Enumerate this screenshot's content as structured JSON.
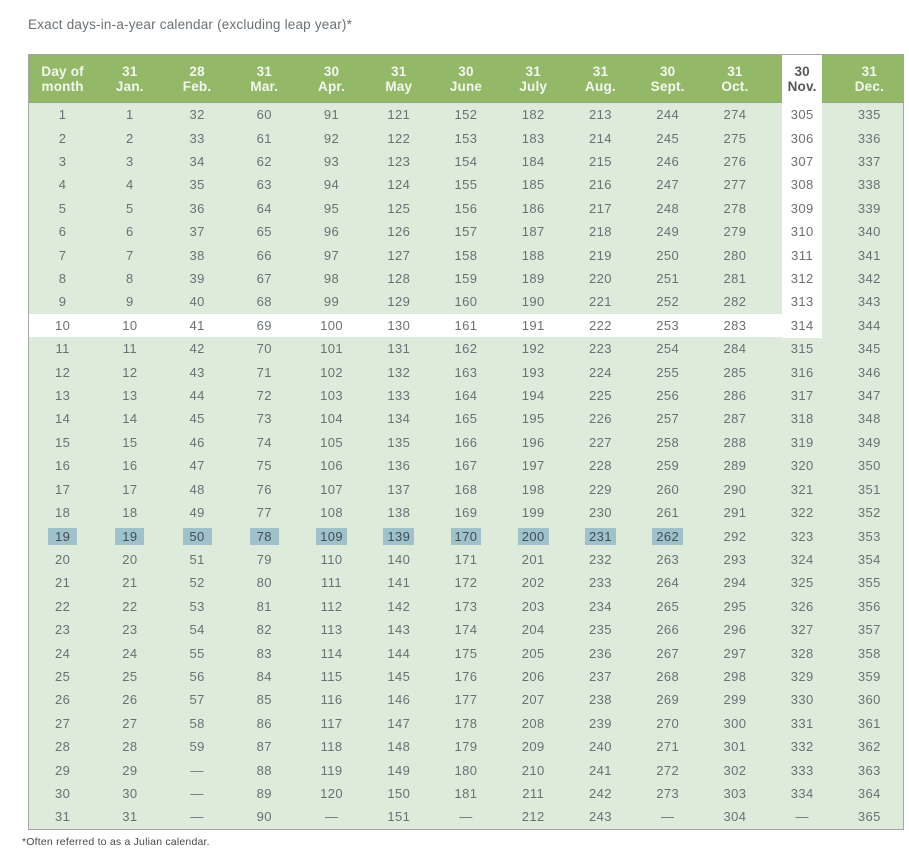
{
  "title": "Exact days-in-a-year calendar (excluding leap year)*",
  "footnote": "*Often referred to as a Julian calendar.",
  "table": {
    "corner_header": {
      "line1": "Day of",
      "line2": "month"
    },
    "columns": [
      {
        "days": "31",
        "month": "Jan."
      },
      {
        "days": "28",
        "month": "Feb."
      },
      {
        "days": "31",
        "month": "Mar."
      },
      {
        "days": "30",
        "month": "Apr."
      },
      {
        "days": "31",
        "month": "May"
      },
      {
        "days": "30",
        "month": "June"
      },
      {
        "days": "31",
        "month": "July"
      },
      {
        "days": "31",
        "month": "Aug."
      },
      {
        "days": "30",
        "month": "Sept."
      },
      {
        "days": "31",
        "month": "Oct."
      },
      {
        "days": "30",
        "month": "Nov."
      },
      {
        "days": "31",
        "month": "Dec."
      }
    ],
    "rows": [
      [
        "1",
        "1",
        "32",
        "60",
        "91",
        "121",
        "152",
        "182",
        "213",
        "244",
        "274",
        "305",
        "335"
      ],
      [
        "2",
        "2",
        "33",
        "61",
        "92",
        "122",
        "153",
        "183",
        "214",
        "245",
        "275",
        "306",
        "336"
      ],
      [
        "3",
        "3",
        "34",
        "62",
        "93",
        "123",
        "154",
        "184",
        "215",
        "246",
        "276",
        "307",
        "337"
      ],
      [
        "4",
        "4",
        "35",
        "63",
        "94",
        "124",
        "155",
        "185",
        "216",
        "247",
        "277",
        "308",
        "338"
      ],
      [
        "5",
        "5",
        "36",
        "64",
        "95",
        "125",
        "156",
        "186",
        "217",
        "248",
        "278",
        "309",
        "339"
      ],
      [
        "6",
        "6",
        "37",
        "65",
        "96",
        "126",
        "157",
        "187",
        "218",
        "249",
        "279",
        "310",
        "340"
      ],
      [
        "7",
        "7",
        "38",
        "66",
        "97",
        "127",
        "158",
        "188",
        "219",
        "250",
        "280",
        "311",
        "341"
      ],
      [
        "8",
        "8",
        "39",
        "67",
        "98",
        "128",
        "159",
        "189",
        "220",
        "251",
        "281",
        "312",
        "342"
      ],
      [
        "9",
        "9",
        "40",
        "68",
        "99",
        "129",
        "160",
        "190",
        "221",
        "252",
        "282",
        "313",
        "343"
      ],
      [
        "10",
        "10",
        "41",
        "69",
        "100",
        "130",
        "161",
        "191",
        "222",
        "253",
        "283",
        "314",
        "344"
      ],
      [
        "11",
        "11",
        "42",
        "70",
        "101",
        "131",
        "162",
        "192",
        "223",
        "254",
        "284",
        "315",
        "345"
      ],
      [
        "12",
        "12",
        "43",
        "71",
        "102",
        "132",
        "163",
        "193",
        "224",
        "255",
        "285",
        "316",
        "346"
      ],
      [
        "13",
        "13",
        "44",
        "72",
        "103",
        "133",
        "164",
        "194",
        "225",
        "256",
        "286",
        "317",
        "347"
      ],
      [
        "14",
        "14",
        "45",
        "73",
        "104",
        "134",
        "165",
        "195",
        "226",
        "257",
        "287",
        "318",
        "348"
      ],
      [
        "15",
        "15",
        "46",
        "74",
        "105",
        "135",
        "166",
        "196",
        "227",
        "258",
        "288",
        "319",
        "349"
      ],
      [
        "16",
        "16",
        "47",
        "75",
        "106",
        "136",
        "167",
        "197",
        "228",
        "259",
        "289",
        "320",
        "350"
      ],
      [
        "17",
        "17",
        "48",
        "76",
        "107",
        "137",
        "168",
        "198",
        "229",
        "260",
        "290",
        "321",
        "351"
      ],
      [
        "18",
        "18",
        "49",
        "77",
        "108",
        "138",
        "169",
        "199",
        "230",
        "261",
        "291",
        "322",
        "352"
      ],
      [
        "19",
        "19",
        "50",
        "78",
        "109",
        "139",
        "170",
        "200",
        "231",
        "262",
        "292",
        "323",
        "353"
      ],
      [
        "20",
        "20",
        "51",
        "79",
        "110",
        "140",
        "171",
        "201",
        "232",
        "263",
        "293",
        "324",
        "354"
      ],
      [
        "21",
        "21",
        "52",
        "80",
        "111",
        "141",
        "172",
        "202",
        "233",
        "264",
        "294",
        "325",
        "355"
      ],
      [
        "22",
        "22",
        "53",
        "81",
        "112",
        "142",
        "173",
        "203",
        "234",
        "265",
        "295",
        "326",
        "356"
      ],
      [
        "23",
        "23",
        "54",
        "82",
        "113",
        "143",
        "174",
        "204",
        "235",
        "266",
        "296",
        "327",
        "357"
      ],
      [
        "24",
        "24",
        "55",
        "83",
        "114",
        "144",
        "175",
        "205",
        "236",
        "267",
        "297",
        "328",
        "358"
      ],
      [
        "25",
        "25",
        "56",
        "84",
        "115",
        "145",
        "176",
        "206",
        "237",
        "268",
        "298",
        "329",
        "359"
      ],
      [
        "26",
        "26",
        "57",
        "85",
        "116",
        "146",
        "177",
        "207",
        "238",
        "269",
        "299",
        "330",
        "360"
      ],
      [
        "27",
        "27",
        "58",
        "86",
        "117",
        "147",
        "178",
        "208",
        "239",
        "270",
        "300",
        "331",
        "361"
      ],
      [
        "28",
        "28",
        "59",
        "87",
        "118",
        "148",
        "179",
        "209",
        "240",
        "271",
        "301",
        "332",
        "362"
      ],
      [
        "29",
        "29",
        "—",
        "88",
        "119",
        "149",
        "180",
        "210",
        "241",
        "272",
        "302",
        "333",
        "363"
      ],
      [
        "30",
        "30",
        "—",
        "89",
        "120",
        "150",
        "181",
        "211",
        "242",
        "273",
        "303",
        "334",
        "364"
      ],
      [
        "31",
        "31",
        "—",
        "90",
        "—",
        "151",
        "—",
        "212",
        "243",
        "—",
        "304",
        "—",
        "365"
      ]
    ]
  },
  "highlights": {
    "white_row_day": "10",
    "white_column_month": "Nov.",
    "teal_row_day": "19",
    "teal_last_column_month": "Sept.",
    "teal_col_end_index": 9
  },
  "colors": {
    "header_bg": "#92b868",
    "header_text": "#f5f7ef",
    "nov_header_text": "#56595c",
    "body_bg": "#deebdb",
    "body_text": "#6b7074",
    "chip_bg": "#9fc2ca",
    "chip_text": "#414d55",
    "white_highlight": "#ffffff",
    "border": "#a3a8a4",
    "title_text": "#6a7176",
    "footnote_text": "#46494b"
  }
}
